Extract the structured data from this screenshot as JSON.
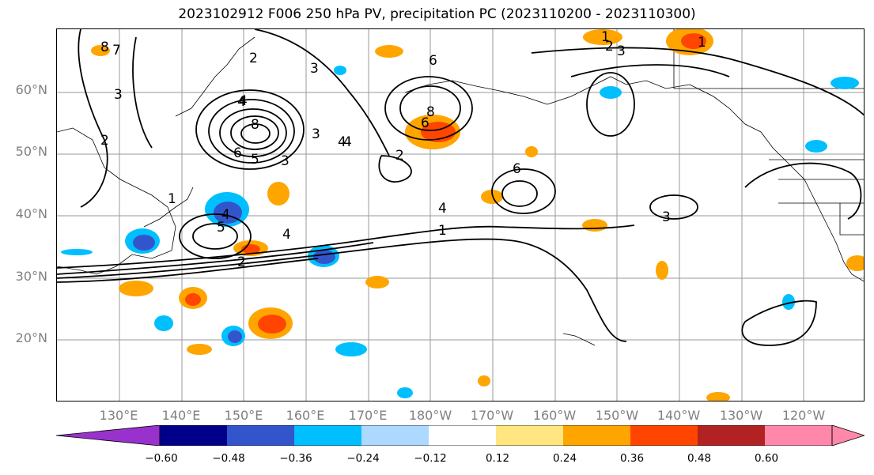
{
  "title": "2023102912 F006 250 hPa PV, precipitation PC (2023110200 - 2023110300)",
  "map": {
    "lat_labels": [
      "60°N",
      "50°N",
      "40°N",
      "30°N",
      "20°N"
    ],
    "lon_labels": [
      "130°E",
      "140°E",
      "150°E",
      "160°E",
      "170°E",
      "180°W",
      "170°W",
      "160°W",
      "150°W",
      "140°W",
      "130°W",
      "120°W"
    ],
    "contour_labels": [
      "8",
      "7",
      "3",
      "2",
      "4",
      "8",
      "6",
      "5",
      "3",
      "2",
      "4",
      "8",
      "6",
      "1",
      "2",
      "1",
      "2",
      "3",
      "3",
      "4",
      "5",
      "4",
      "2",
      "4",
      "1",
      "6",
      "4",
      "3",
      "3",
      "4",
      "6",
      "1"
    ],
    "colors": {
      "neg_4": "#9932cc",
      "neg_3": "#00008b",
      "neg_2": "#3355cc",
      "neg_1": "#00bfff",
      "neg_0": "#add8ff",
      "zero": "#ffffff",
      "pos_0": "#ffe680",
      "pos_1": "#ffa500",
      "pos_2": "#ff4500",
      "pos_3": "#b22222",
      "pos_4": "#ff88aa"
    }
  },
  "colorbar": {
    "ticks": [
      "−0.60",
      "−0.48",
      "−0.36",
      "−0.24",
      "−0.12",
      "0.12",
      "0.24",
      "0.36",
      "0.48",
      "0.60"
    ]
  }
}
